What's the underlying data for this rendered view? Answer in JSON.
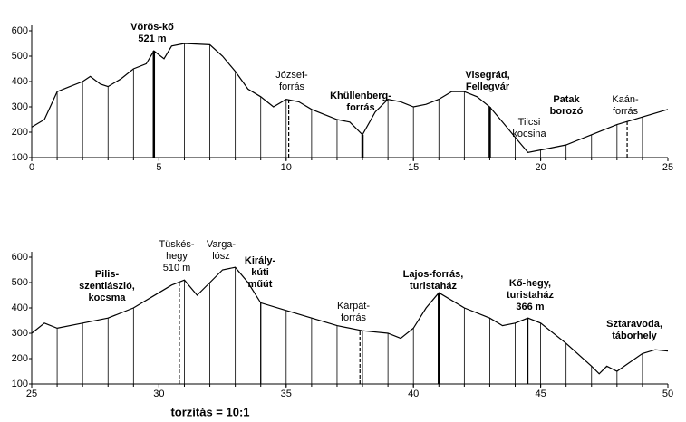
{
  "chart_data": [
    {
      "type": "line",
      "color": "#000000",
      "x": [
        0,
        0.5,
        1,
        1.5,
        2,
        2.3,
        2.7,
        3,
        3.5,
        4,
        4.5,
        4.8,
        5.2,
        5.5,
        6,
        7,
        7.5,
        8,
        8.5,
        9,
        9.5,
        10,
        10.5,
        11,
        11.5,
        12,
        12.5,
        13,
        13.5,
        14,
        14.5,
        15,
        15.5,
        16,
        16.5,
        17,
        17.5,
        18,
        18.5,
        19,
        19.5,
        20,
        21,
        22,
        23,
        24,
        25
      ],
      "values": [
        220,
        250,
        360,
        380,
        400,
        420,
        390,
        380,
        410,
        450,
        470,
        521,
        490,
        540,
        550,
        545,
        500,
        440,
        370,
        340,
        300,
        330,
        320,
        290,
        270,
        250,
        240,
        190,
        280,
        330,
        320,
        300,
        310,
        330,
        360,
        360,
        340,
        300,
        240,
        180,
        120,
        130,
        150,
        190,
        230,
        260,
        290
      ],
      "xlim": [
        0,
        25
      ],
      "xticks": [
        0,
        5,
        10,
        15,
        20,
        25
      ],
      "ylim": [
        100,
        600
      ],
      "yticks": [
        100,
        200,
        300,
        400,
        500,
        600
      ],
      "annotations": [
        [
          "Vörös-kő",
          "521 m"
        ],
        [
          "József-",
          "forrás"
        ],
        [
          "Khüllenberg-",
          "forrás"
        ],
        [
          "Visegrád,",
          "Fellegvár"
        ],
        [
          "Patak",
          "borozó"
        ],
        [
          "Tilcsi",
          "kocsina"
        ],
        [
          "Kaán-",
          "forrás"
        ]
      ]
    },
    {
      "type": "line",
      "color": "#000000",
      "x": [
        25,
        25.5,
        26,
        27,
        28,
        29,
        30,
        30.5,
        31,
        31.5,
        32,
        32.5,
        33,
        33.5,
        34,
        35,
        36,
        37,
        38,
        39,
        39.5,
        40,
        40.5,
        41,
        42,
        43,
        43.5,
        44,
        44.5,
        45,
        46,
        47,
        47.3,
        47.6,
        48,
        49,
        49.5,
        50
      ],
      "values": [
        300,
        340,
        320,
        340,
        360,
        400,
        460,
        490,
        510,
        450,
        500,
        550,
        560,
        500,
        420,
        390,
        360,
        330,
        310,
        300,
        280,
        320,
        400,
        460,
        400,
        360,
        330,
        340,
        360,
        340,
        260,
        170,
        140,
        170,
        150,
        220,
        235,
        230
      ],
      "xlim": [
        25,
        50
      ],
      "xticks": [
        25,
        30,
        35,
        40,
        45,
        50
      ],
      "ylim": [
        100,
        600
      ],
      "yticks": [
        100,
        200,
        300,
        400,
        500,
        600
      ],
      "annotations": [
        [
          "Pilis-",
          "szentlászló,",
          "kocsma"
        ],
        [
          "Tüskés-",
          "hegy",
          "510 m"
        ],
        [
          "Varga-",
          "lósz"
        ],
        [
          "Király-",
          "kúti",
          "műút"
        ],
        [
          "Kárpát-",
          "forrás"
        ],
        [
          "Lajos-forrás,",
          "turistaház"
        ],
        [
          "Kő-hegy,",
          "turistaház",
          "366 m"
        ],
        [
          "Sztaravoda,",
          "táborhely"
        ]
      ]
    }
  ],
  "footer": "torzítás = 10:1"
}
